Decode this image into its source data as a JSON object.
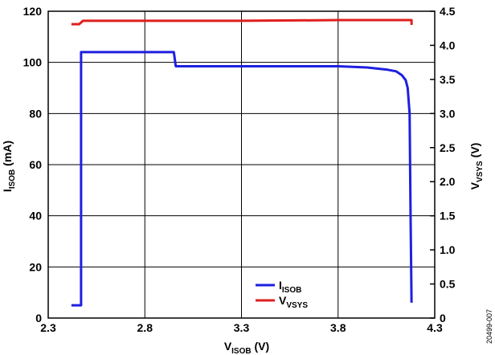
{
  "chart_data": {
    "type": "line",
    "x_axis": {
      "label_main": "V",
      "label_sub": "ISOB",
      "label_unit": " (V)",
      "range": [
        2.3,
        4.3
      ],
      "ticks": [
        2.3,
        2.8,
        3.3,
        3.8,
        4.3
      ],
      "tick_labels": [
        "2.3",
        "2.8",
        "3.3",
        "3.8",
        "4.3"
      ]
    },
    "y_left": {
      "label_main": "I",
      "label_sub": "ISOB",
      "label_unit": " (mA)",
      "range": [
        0,
        120
      ],
      "ticks": [
        0,
        20,
        40,
        60,
        80,
        100,
        120
      ],
      "tick_labels": [
        "0",
        "20",
        "40",
        "60",
        "80",
        "100",
        "120"
      ]
    },
    "y_right": {
      "label_main": "V",
      "label_sub": "VSYS",
      "label_unit": " (V)",
      "range": [
        0,
        4.5
      ],
      "ticks": [
        0,
        0.5,
        1.0,
        1.5,
        2.0,
        2.5,
        3.0,
        3.5,
        4.0,
        4.5
      ],
      "tick_labels": [
        "0",
        "0.5",
        "1.0",
        "1.5",
        "2.0",
        "2.5",
        "3.0",
        "3.5",
        "4.0",
        "4.5"
      ]
    },
    "grid": true,
    "legend_position": "bottom-center",
    "series": [
      {
        "name_main": "I",
        "name_sub": "ISOB",
        "axis": "left",
        "color": "#1f1fe0",
        "x": [
          2.42,
          2.45,
          2.45,
          2.47,
          2.47,
          2.7,
          2.95,
          2.96,
          3.2,
          3.5,
          3.8,
          3.95,
          4.05,
          4.1,
          4.13,
          4.15,
          4.16,
          4.17,
          4.175,
          4.18
        ],
        "y": [
          5,
          5,
          5,
          5,
          104,
          104,
          104,
          98.5,
          98.5,
          98.5,
          98.5,
          98,
          97.2,
          96.5,
          95,
          93,
          90,
          80,
          40,
          6
        ]
      },
      {
        "name_main": "V",
        "name_sub": "VSYS",
        "axis": "right",
        "color": "#e01f1f",
        "x": [
          2.42,
          2.46,
          2.48,
          2.8,
          3.3,
          3.8,
          4.17,
          4.175,
          4.18,
          4.18
        ],
        "y": [
          4.31,
          4.31,
          4.36,
          4.36,
          4.36,
          4.37,
          4.37,
          4.37,
          4.37,
          4.3
        ]
      }
    ],
    "figure_id": "20499-007"
  }
}
